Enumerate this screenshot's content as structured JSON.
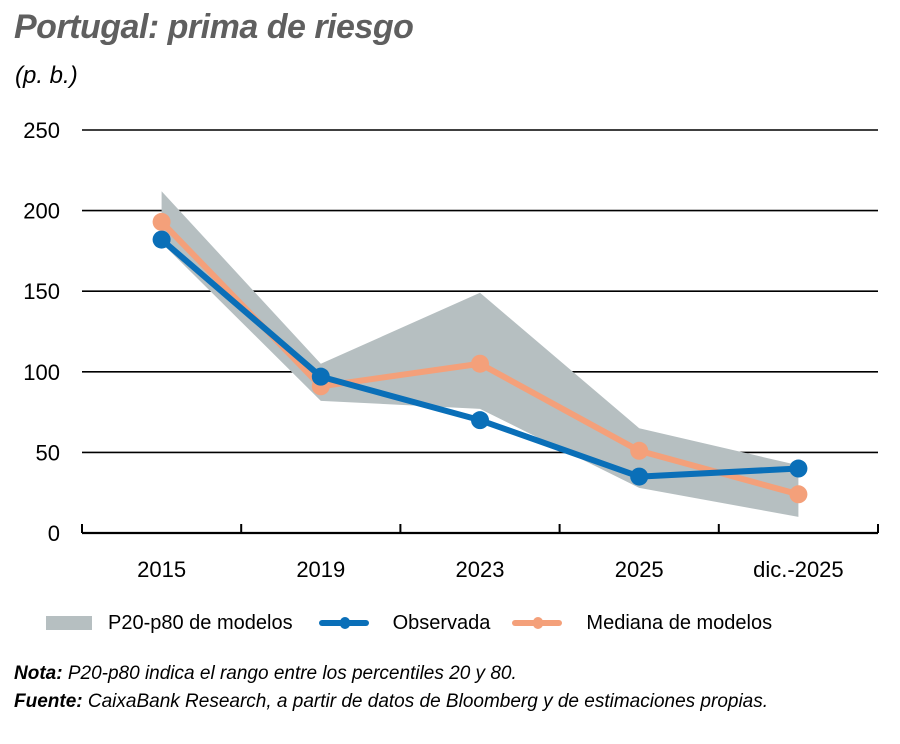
{
  "header": {
    "title": "Portugal: prima de riesgo",
    "unit": "(p. b.)"
  },
  "colors": {
    "band": "#b6bfc1",
    "observed": "#0a6fb8",
    "median": "#f4a07a",
    "title": "#5f5f5f"
  },
  "legend": {
    "band_label": "P20-p80 de modelos",
    "observed_label": "Observada",
    "median_label": "Mediana de modelos"
  },
  "notes": {
    "nota_label": "Nota:",
    "nota_text": " P20-p80 indica el rango entre los percentiles 20 y 80.",
    "fuente_label": "Fuente:",
    "fuente_text": " CaixaBank Research, a partir de datos de Bloomberg y de estimaciones propias."
  },
  "chart_data": {
    "type": "line",
    "title": "Portugal: prima de riesgo",
    "ylabel": "(p. b.)",
    "xlabel": "",
    "categories": [
      "2015",
      "2019",
      "2023",
      "2025",
      "dic.-2025"
    ],
    "ylim": [
      0,
      250
    ],
    "yticks": [
      0,
      50,
      100,
      150,
      200,
      250
    ],
    "grid": true,
    "legend_position": "bottom",
    "series": [
      {
        "name": "Observada",
        "type": "line",
        "values": [
          182,
          97,
          70,
          35,
          40
        ]
      },
      {
        "name": "Mediana de modelos",
        "type": "line",
        "values": [
          193,
          91,
          105,
          51,
          24
        ]
      },
      {
        "name": "P20-p80 de modelos",
        "type": "area-band",
        "lower": [
          180,
          82,
          77,
          28,
          10
        ],
        "upper": [
          212,
          105,
          149,
          65,
          42
        ]
      }
    ]
  }
}
